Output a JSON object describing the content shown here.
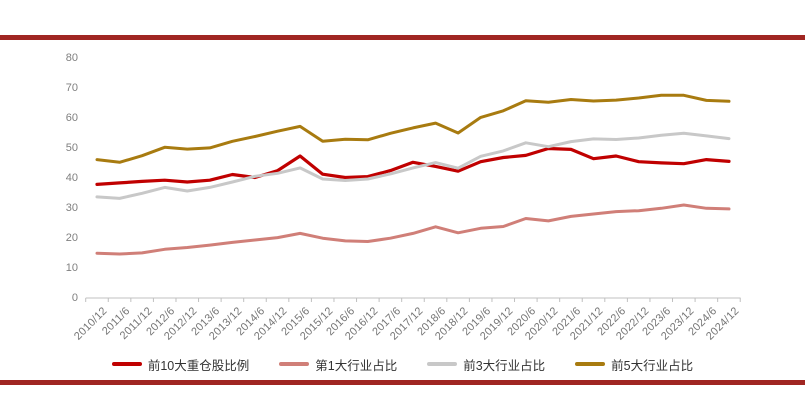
{
  "page": {
    "accent_bar_color": "#a02622",
    "background": "#ffffff"
  },
  "axis": {
    "ytick_labels": [
      "0",
      "10",
      "20",
      "30",
      "40",
      "50",
      "60",
      "70",
      "80"
    ],
    "axis_line_color": "#c0c0c0",
    "tick_label_color": "#767676"
  },
  "legend": {
    "items": [
      "前10大重仓股比例",
      "第1大行业占比",
      "前3大行业占比",
      "前5大行业占比"
    ]
  },
  "chart_data": {
    "type": "line",
    "title": "",
    "xlabel": "",
    "ylabel": "",
    "ylim": [
      0,
      80
    ],
    "ytick_step": 10,
    "grid": false,
    "legend_position": "bottom",
    "categories": [
      "2010/12",
      "2011/6",
      "2011/12",
      "2012/6",
      "2012/12",
      "2013/6",
      "2013/12",
      "2014/6",
      "2014/12",
      "2015/6",
      "2015/12",
      "2016/6",
      "2016/12",
      "2017/6",
      "2017/12",
      "2018/6",
      "2018/12",
      "2019/6",
      "2019/12",
      "2020/6",
      "2020/12",
      "2021/6",
      "2021/12",
      "2022/6",
      "2022/12",
      "2023/6",
      "2023/12",
      "2024/6",
      "2024/12"
    ],
    "series": [
      {
        "name": "前10大重仓股比例",
        "color": "#c00000",
        "width": 3.2,
        "values": [
          38.0,
          38.5,
          39.0,
          39.4,
          38.8,
          39.4,
          41.3,
          40.3,
          42.6,
          47.5,
          41.4,
          40.3,
          40.6,
          42.6,
          45.4,
          44.0,
          42.4,
          45.6,
          47.0,
          47.7,
          50.0,
          49.7,
          46.6,
          47.5,
          45.6,
          45.2,
          44.9,
          46.3,
          45.7
        ]
      },
      {
        "name": "第1大行业占比",
        "color": "#d07f78",
        "width": 3,
        "values": [
          15.0,
          14.7,
          15.1,
          16.3,
          16.9,
          17.7,
          18.6,
          19.4,
          20.2,
          21.6,
          20.0,
          19.1,
          18.9,
          20.0,
          21.6,
          23.8,
          21.8,
          23.3,
          23.9,
          26.6,
          25.8,
          27.3,
          28.1,
          28.9,
          29.2,
          30.0,
          31.1,
          30.0,
          29.8
        ]
      },
      {
        "name": "前3大行业占比",
        "color": "#c8c8c8",
        "width": 3,
        "values": [
          33.8,
          33.3,
          35.0,
          37.0,
          35.8,
          37.0,
          38.8,
          40.7,
          41.7,
          43.5,
          39.8,
          39.3,
          39.8,
          41.5,
          43.5,
          45.3,
          43.4,
          47.4,
          49.2,
          51.9,
          50.6,
          52.3,
          53.2,
          53.0,
          53.5,
          54.4,
          55.1,
          54.2,
          53.3
        ]
      },
      {
        "name": "前5大行业占比",
        "color": "#a87b10",
        "width": 3,
        "values": [
          46.3,
          45.4,
          47.6,
          50.4,
          49.8,
          50.2,
          52.4,
          54.0,
          55.8,
          57.4,
          52.4,
          53.1,
          52.9,
          55.1,
          56.9,
          58.5,
          55.2,
          60.4,
          62.6,
          66.0,
          65.5,
          66.4,
          65.9,
          66.2,
          66.9,
          67.8,
          67.8,
          66.1,
          65.8
        ]
      }
    ]
  }
}
